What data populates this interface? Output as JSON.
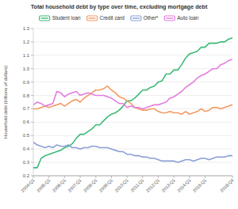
{
  "chart_data": {
    "type": "line",
    "title": "Total household debt by type over time, excluding mortgage debt",
    "y_label": "Household debt (trillions of dollars)",
    "categories": [
      "2004:Q1",
      null,
      null,
      null,
      "2005:Q1",
      null,
      null,
      null,
      "2006:Q1",
      null,
      null,
      null,
      "2007:Q1",
      null,
      null,
      null,
      "2008:Q1",
      null,
      null,
      null,
      "2009:Q1",
      null,
      null,
      null,
      "2010:Q1",
      null,
      null,
      null,
      "2011:Q1",
      null,
      null,
      null,
      "2012:Q1",
      null,
      null,
      null,
      "2013:Q1",
      null,
      null,
      null,
      "2014:Q1",
      null,
      null,
      null,
      "2015:Q1",
      null,
      null,
      null,
      null,
      null,
      null,
      "2016:Q4"
    ],
    "series": [
      {
        "name": "Student loan",
        "color": "#3dbb78",
        "values": [
          0.26,
          0.26,
          0.33,
          0.35,
          0.36,
          0.37,
          0.38,
          0.39,
          0.41,
          0.42,
          0.44,
          0.48,
          0.51,
          0.51,
          0.53,
          0.55,
          0.58,
          0.58,
          0.61,
          0.64,
          0.66,
          0.67,
          0.69,
          0.72,
          0.76,
          0.76,
          0.78,
          0.81,
          0.84,
          0.84,
          0.86,
          0.87,
          0.9,
          0.91,
          0.96,
          0.96,
          0.99,
          0.99,
          1.03,
          1.08,
          1.11,
          1.12,
          1.13,
          1.16,
          1.16,
          1.19,
          1.19,
          1.19,
          1.2,
          1.2,
          1.22,
          1.23
        ]
      },
      {
        "name": "Credit card",
        "color": "#f39a62",
        "values": [
          0.7,
          0.7,
          0.71,
          0.72,
          0.71,
          0.72,
          0.73,
          0.74,
          0.72,
          0.74,
          0.76,
          0.77,
          0.75,
          0.78,
          0.8,
          0.82,
          0.84,
          0.84,
          0.85,
          0.87,
          0.84,
          0.82,
          0.79,
          0.78,
          0.76,
          0.74,
          0.71,
          0.7,
          0.69,
          0.69,
          0.7,
          0.7,
          0.68,
          0.67,
          0.67,
          0.68,
          0.67,
          0.67,
          0.66,
          0.68,
          0.66,
          0.67,
          0.68,
          0.7,
          0.68,
          0.69,
          0.71,
          0.71,
          0.7,
          0.71,
          0.72,
          0.73
        ]
      },
      {
        "name": "Other*",
        "color": "#8d9fd6",
        "values": [
          0.45,
          0.43,
          0.42,
          0.41,
          0.42,
          0.41,
          0.43,
          0.42,
          0.42,
          0.43,
          0.41,
          0.41,
          0.4,
          0.41,
          0.41,
          0.42,
          0.42,
          0.41,
          0.41,
          0.41,
          0.4,
          0.39,
          0.38,
          0.38,
          0.36,
          0.36,
          0.35,
          0.35,
          0.34,
          0.34,
          0.33,
          0.33,
          0.32,
          0.31,
          0.31,
          0.31,
          0.31,
          0.3,
          0.31,
          0.32,
          0.32,
          0.31,
          0.32,
          0.33,
          0.33,
          0.32,
          0.33,
          0.34,
          0.34,
          0.34,
          0.35,
          0.35
        ]
      },
      {
        "name": "Auto loan",
        "color": "#e47ddf",
        "values": [
          0.73,
          0.75,
          0.74,
          0.72,
          0.73,
          0.74,
          0.83,
          0.82,
          0.79,
          0.81,
          0.82,
          0.83,
          0.8,
          0.81,
          0.82,
          0.81,
          0.8,
          0.8,
          0.8,
          0.79,
          0.78,
          0.76,
          0.74,
          0.74,
          0.71,
          0.72,
          0.71,
          0.71,
          0.7,
          0.71,
          0.72,
          0.73,
          0.73,
          0.74,
          0.75,
          0.78,
          0.79,
          0.81,
          0.83,
          0.86,
          0.88,
          0.9,
          0.93,
          0.95,
          0.96,
          0.98,
          1.0,
          1.0,
          1.03,
          1.04,
          1.06,
          1.07
        ]
      }
    ],
    "ylim": [
      0.2,
      1.3
    ],
    "yticks": [
      0.2,
      0.3,
      0.4,
      0.5,
      0.6,
      0.7,
      0.8,
      0.9,
      {
        "value": 1,
        "label": "1.0"
      },
      1.1,
      1.2,
      1.3
    ],
    "grid": true,
    "legend": "top"
  }
}
